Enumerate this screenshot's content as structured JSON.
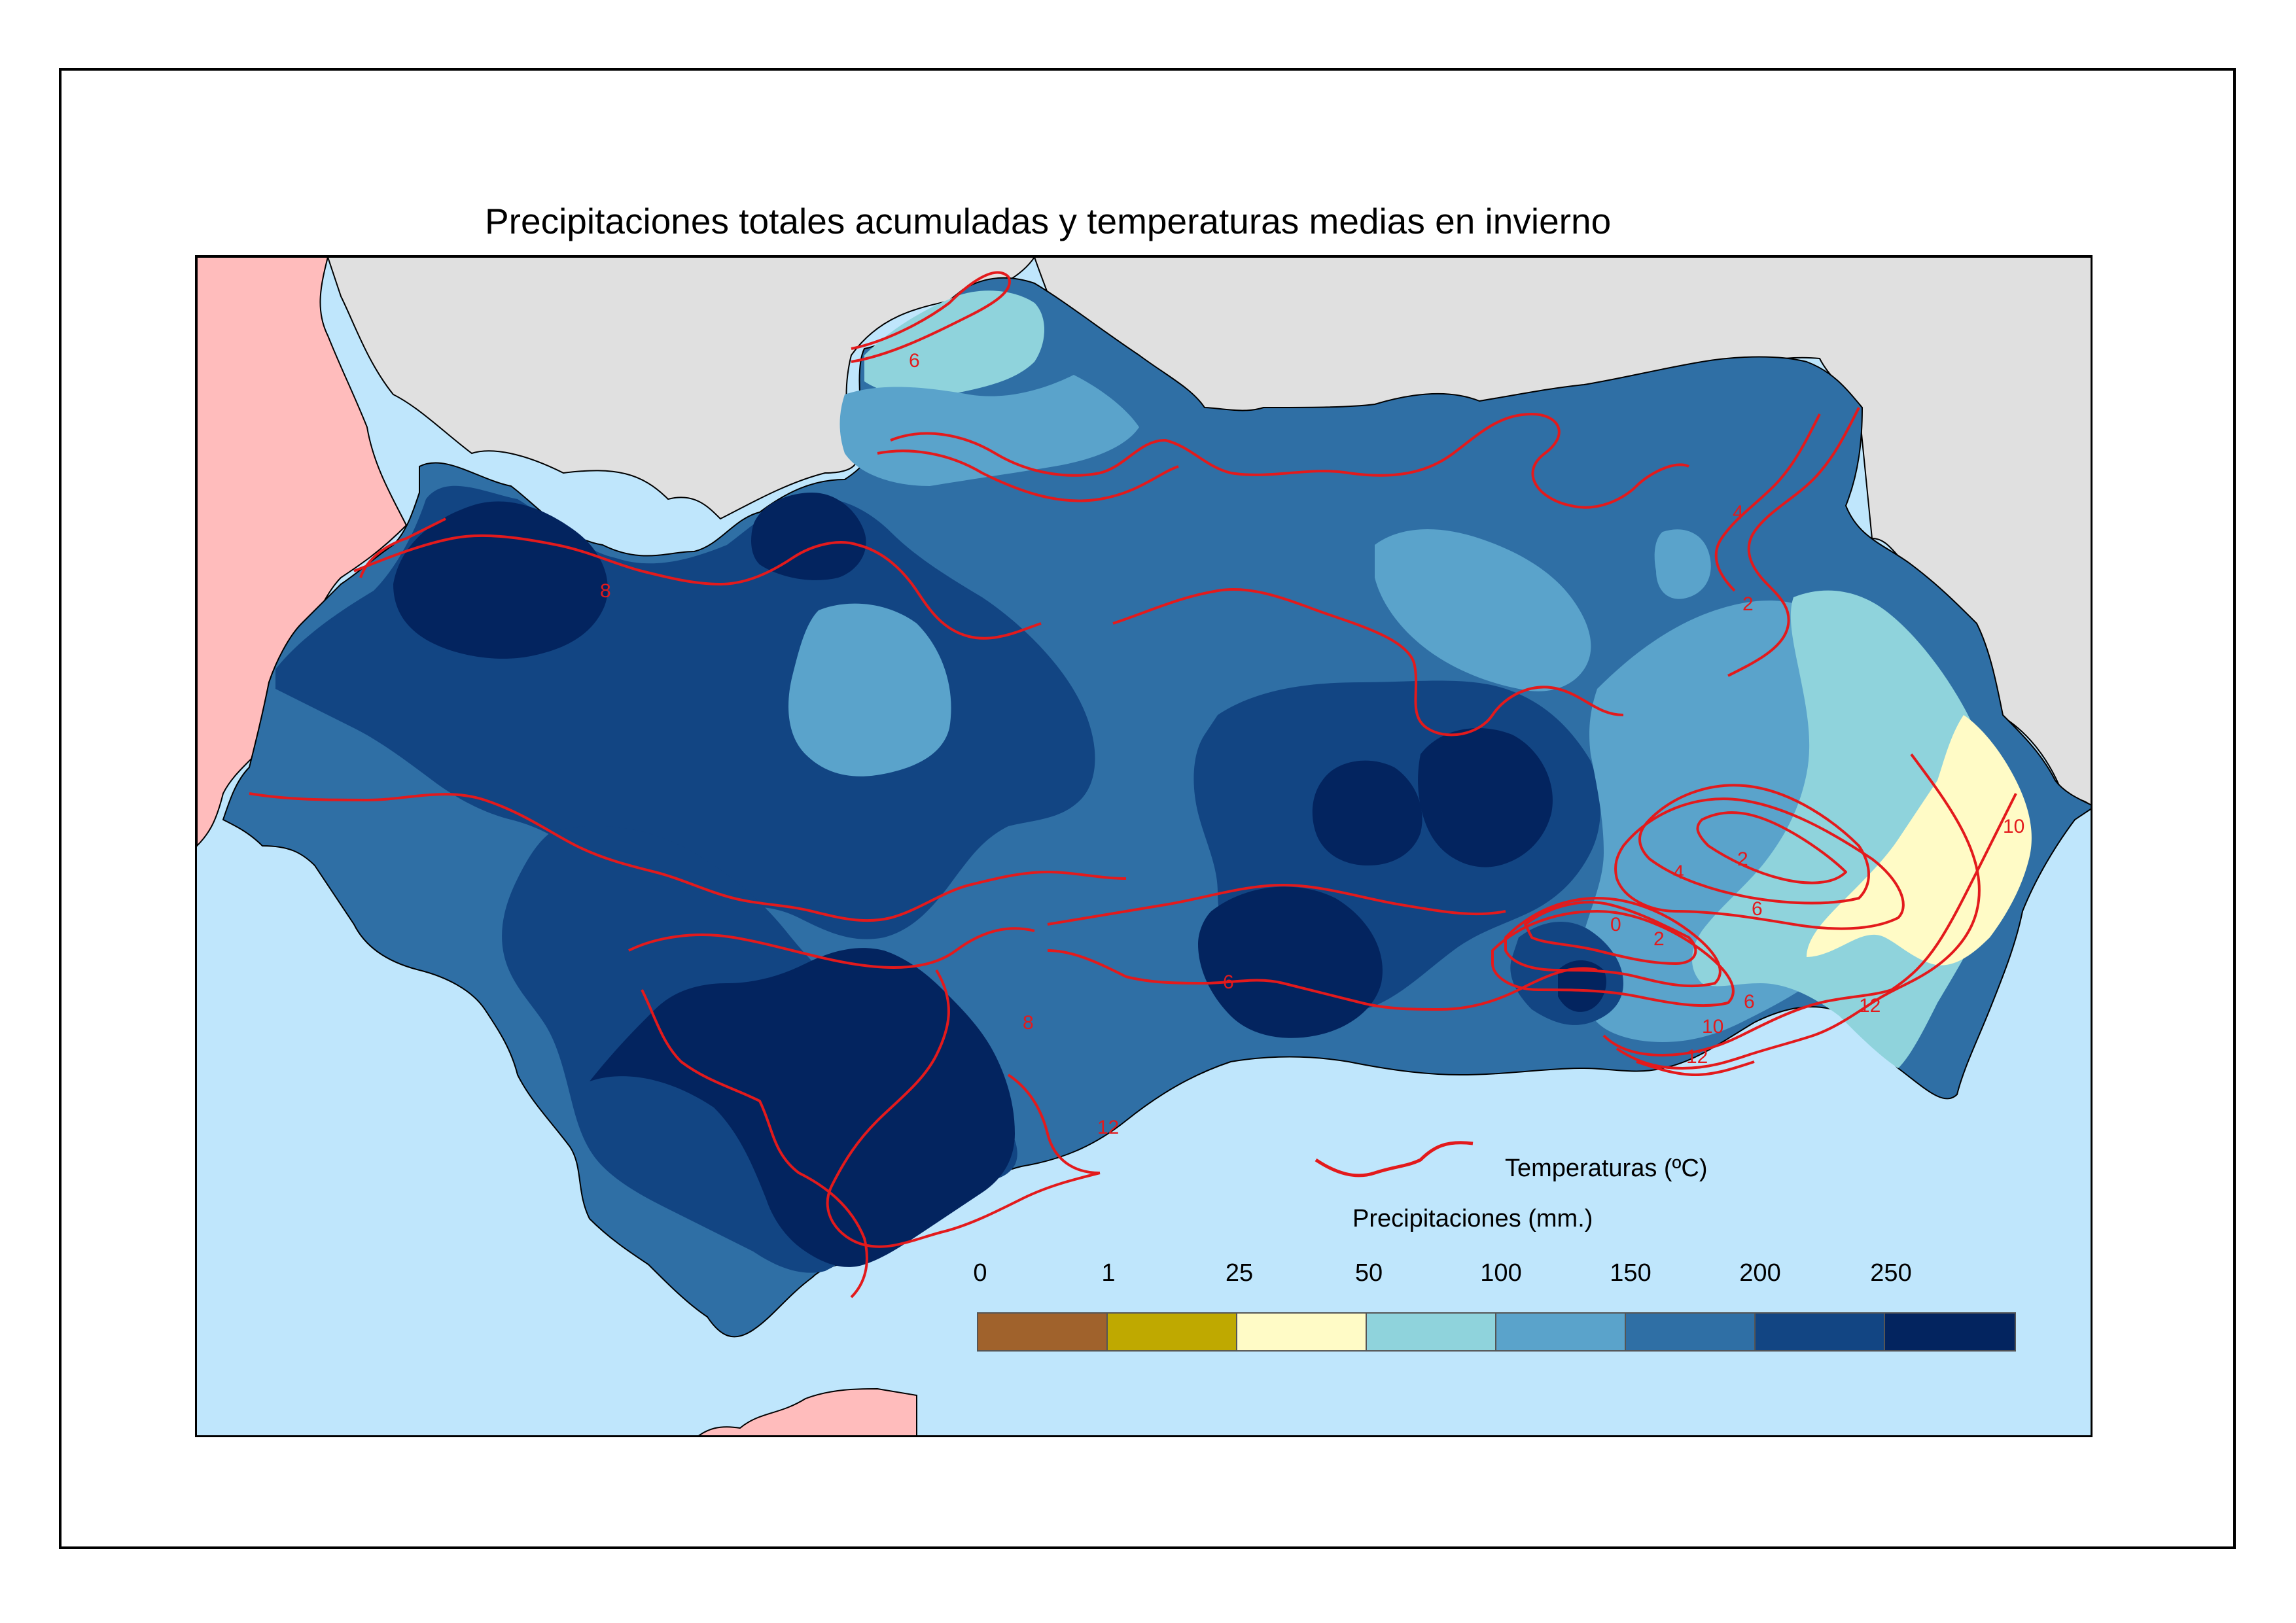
{
  "title": "Precipitaciones totales acumuladas y temperaturas medias en invierno",
  "legend": {
    "temperature_label": "Temperaturas (ºC)",
    "temperature_line_color": "#e31a1c",
    "precipitation_label": "Precipitaciones (mm.)",
    "precipitation_ticks": [
      "0",
      "1",
      "25",
      "50",
      "100",
      "150",
      "200",
      "250"
    ],
    "precipitation_colors": [
      "#a0622c",
      "#bfa900",
      "#fffbc6",
      "#8fd3dc",
      "#5aa3cb",
      "#2f6fa5",
      "#124583",
      "#03245f"
    ]
  },
  "map": {
    "colors": {
      "sea": "#bfe6fc",
      "spain_other": "#e0e0e0",
      "portugal": "#ffbcbc",
      "africa": "#ffbcbc",
      "isotherm": "#e31a1c"
    },
    "isotherm_labels": [
      "6",
      "8",
      "4",
      "2",
      "2",
      "4",
      "6",
      "0",
      "2",
      "6",
      "6",
      "10",
      "12",
      "12",
      "12",
      "10",
      "8"
    ]
  }
}
